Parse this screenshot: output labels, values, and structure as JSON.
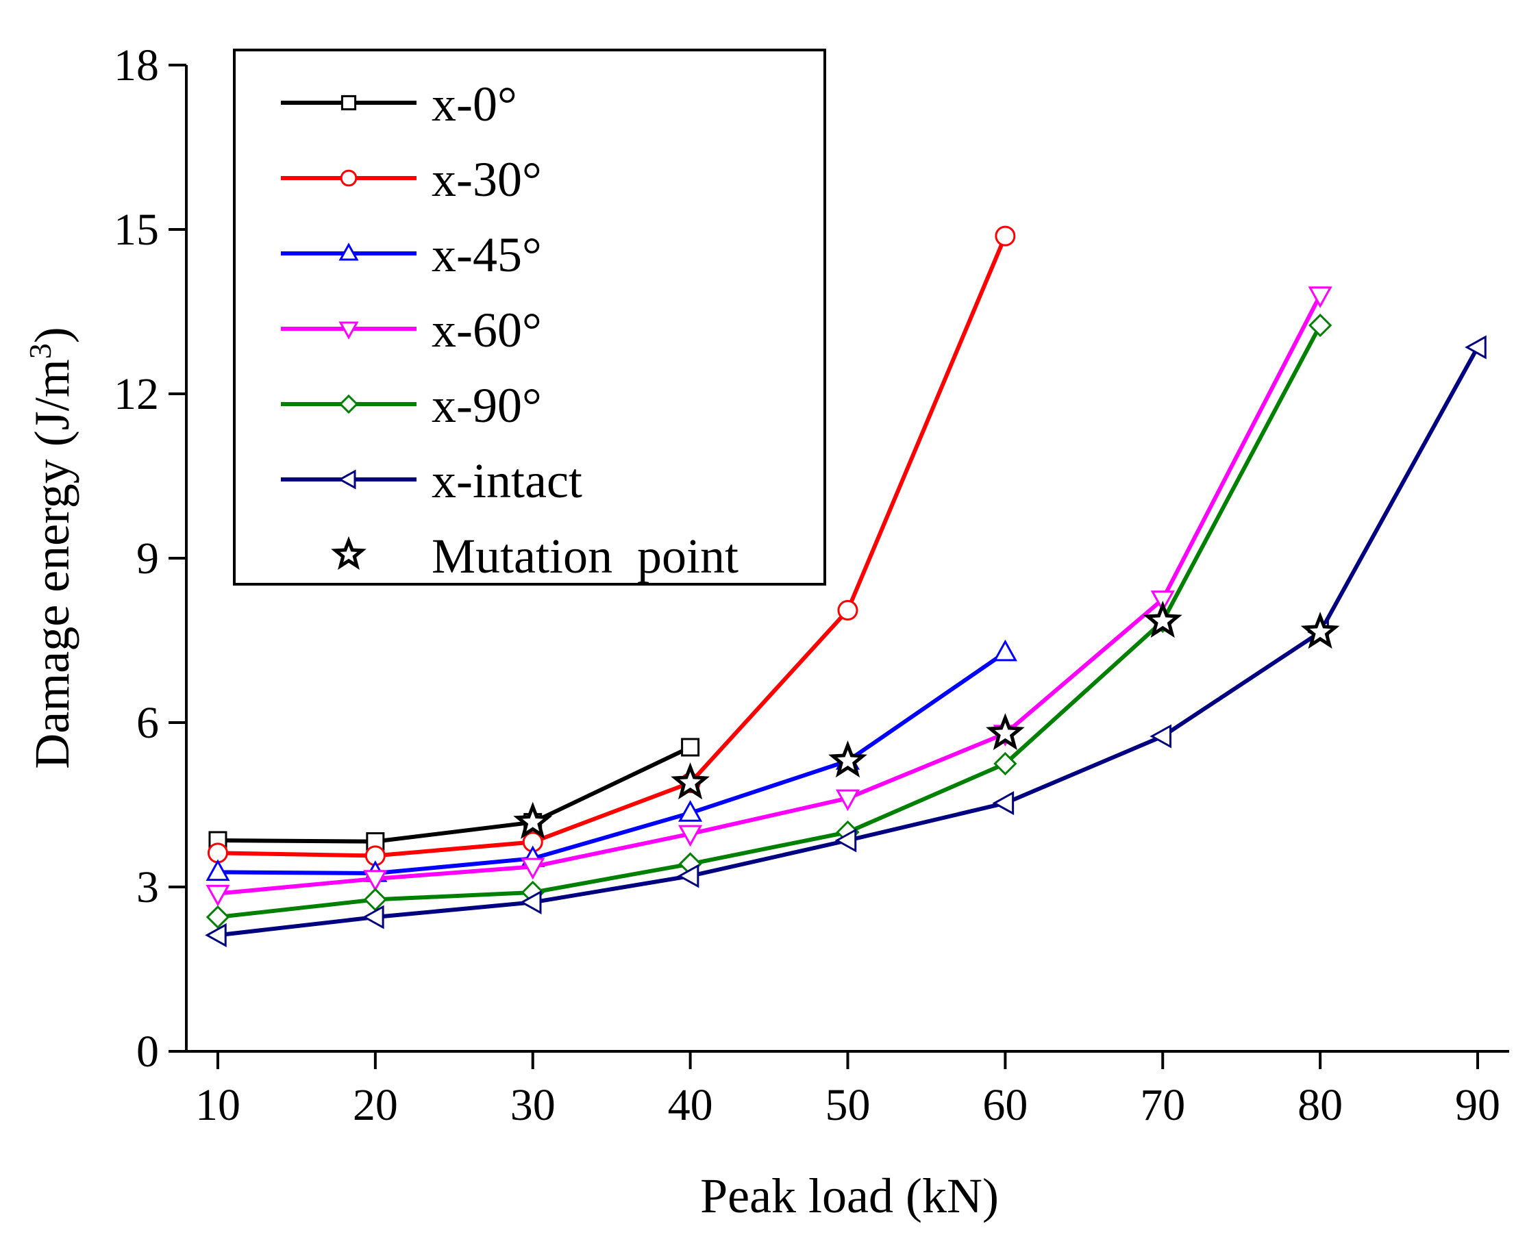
{
  "chart_data": {
    "type": "line",
    "xlabel": "Peak load (kN)",
    "ylabel_main": "Damage energy (J/m",
    "ylabel_sup": "3",
    "ylabel_close": ")",
    "xlim": [
      8,
      92
    ],
    "ylim": [
      0,
      18
    ],
    "xticks": [
      10,
      20,
      30,
      40,
      50,
      60,
      70,
      80,
      90
    ],
    "yticks": [
      0,
      3,
      6,
      9,
      12,
      15,
      18
    ],
    "grid": false,
    "legend_position": "top-left",
    "series": [
      {
        "name": "x-0°",
        "color": "#000000",
        "marker": "square",
        "x": [
          10,
          20,
          30,
          40
        ],
        "values": [
          3.85,
          3.83,
          4.18,
          5.55
        ]
      },
      {
        "name": "x-30°",
        "color": "#ff0000",
        "marker": "circle",
        "x": [
          10,
          20,
          30,
          40,
          50,
          60
        ],
        "values": [
          3.62,
          3.57,
          3.82,
          4.9,
          8.05,
          14.88
        ]
      },
      {
        "name": "x-45°",
        "color": "#0000ff",
        "marker": "triangle-up",
        "x": [
          10,
          20,
          30,
          40,
          50,
          60
        ],
        "values": [
          3.27,
          3.25,
          3.52,
          4.35,
          5.3,
          7.28
        ]
      },
      {
        "name": "x-60°",
        "color": "#ff00ff",
        "marker": "triangle-down",
        "x": [
          10,
          20,
          30,
          40,
          50,
          60,
          70,
          80
        ],
        "values": [
          2.88,
          3.15,
          3.37,
          3.97,
          4.62,
          5.8,
          8.25,
          13.8
        ]
      },
      {
        "name": "x-90°",
        "color": "#008000",
        "marker": "diamond",
        "x": [
          10,
          20,
          30,
          40,
          50,
          60,
          70,
          80
        ],
        "values": [
          2.45,
          2.77,
          2.9,
          3.42,
          4.0,
          5.25,
          7.85,
          13.25
        ]
      },
      {
        "name": "x-intact",
        "color": "#000080",
        "marker": "triangle-left",
        "x": [
          10,
          20,
          30,
          40,
          50,
          60,
          70,
          80,
          90
        ],
        "values": [
          2.12,
          2.45,
          2.72,
          3.2,
          3.85,
          4.53,
          5.75,
          7.65,
          12.85
        ]
      }
    ],
    "mutation_points": {
      "name": "Mutation  point",
      "marker": "star",
      "x": [
        30,
        40,
        50,
        60,
        70,
        80
      ],
      "values": [
        4.18,
        4.9,
        5.3,
        5.8,
        7.85,
        7.65
      ]
    }
  }
}
